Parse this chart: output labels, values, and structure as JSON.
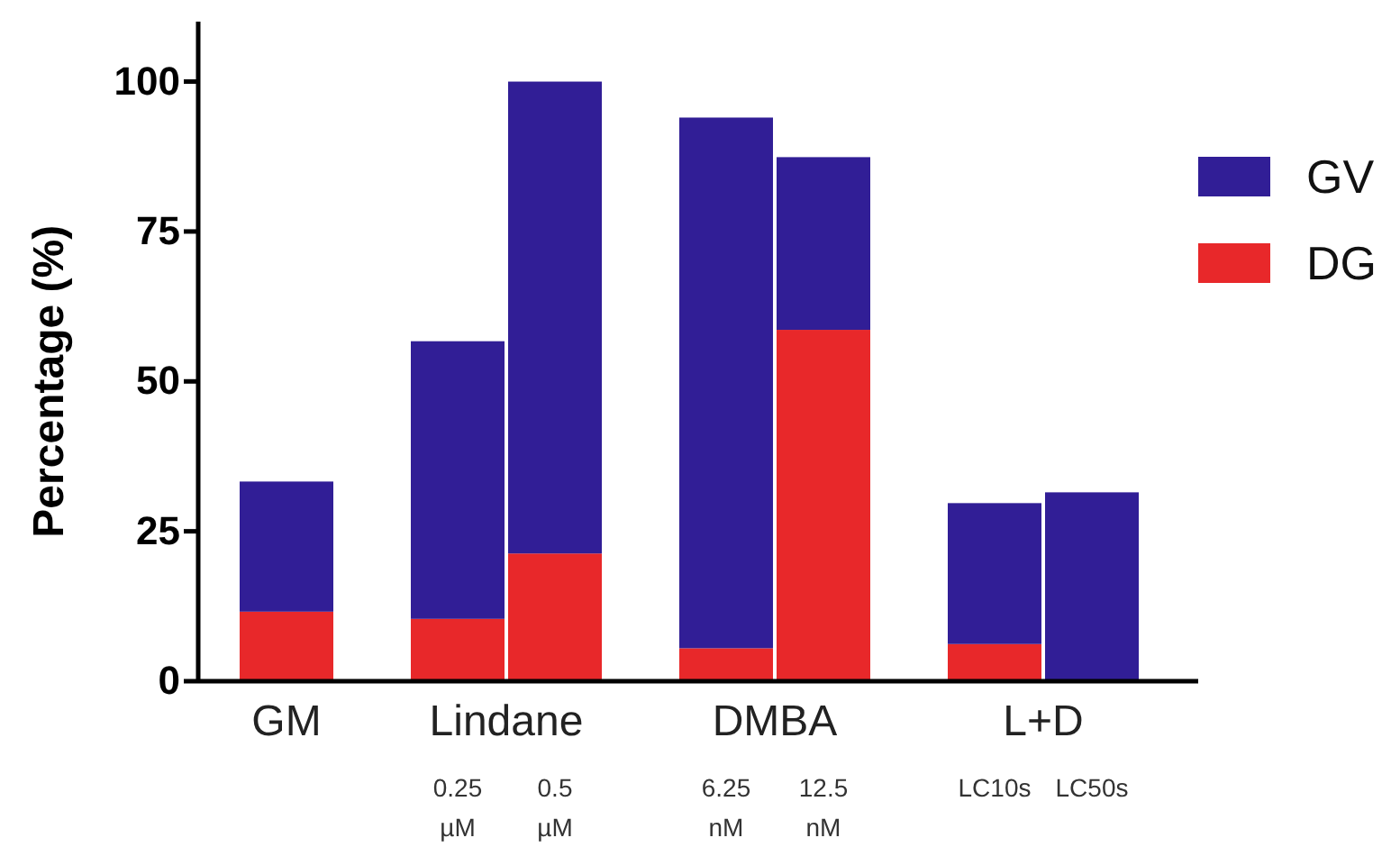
{
  "chart_data": {
    "type": "bar",
    "stacked": true,
    "ylabel": "Percentage (%)",
    "categories": [
      "GM",
      "0.25 µM",
      "0.5 µM",
      "6.25 nM",
      "12.5 nM",
      "LC10s",
      "LC50s"
    ],
    "annotations": [
      "Lindane",
      "DMBA",
      "L+D"
    ],
    "series": [
      {
        "name": "DG",
        "color": "#e8282a",
        "values": [
          11.6,
          10.4,
          21.3,
          5.5,
          58.6,
          6.2,
          0
        ]
      },
      {
        "name": "GV",
        "color": "#311e96",
        "values": [
          21.7,
          46.3,
          78.7,
          88.5,
          28.8,
          23.5,
          31.5
        ]
      }
    ],
    "ylim": [
      0,
      110
    ],
    "yticks": [
      0,
      25,
      50,
      75,
      100
    ],
    "grid": false,
    "legend": "right"
  }
}
